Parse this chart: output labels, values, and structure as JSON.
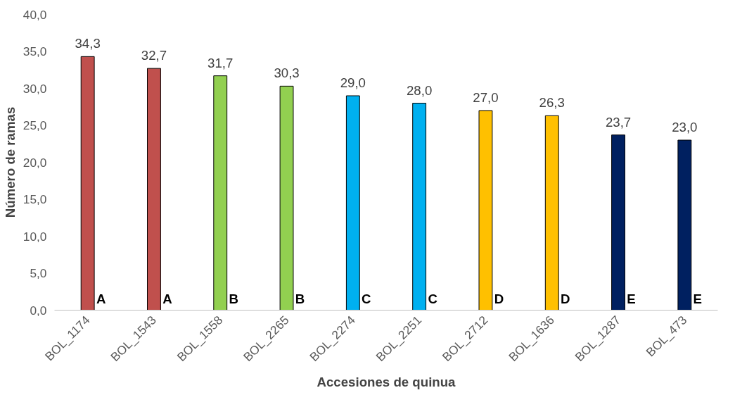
{
  "chart_data": {
    "type": "bar",
    "xlabel": "Accesiones de quinua",
    "ylabel": "Número de ramas",
    "categories": [
      "BOL_1174",
      "BOL_1543",
      "BOL_1558",
      "BOL_2265",
      "BOL_2274",
      "BOL_2251",
      "BOL_2712",
      "BOL_1636",
      "BOL_1287",
      "BOL_473"
    ],
    "values": [
      34.3,
      32.7,
      31.7,
      30.3,
      29.0,
      28.0,
      27.0,
      26.3,
      23.7,
      23.0
    ],
    "colors": [
      "#c0504d",
      "#c0504d",
      "#92d050",
      "#92d050",
      "#00b0f0",
      "#00b0f0",
      "#ffc000",
      "#ffc000",
      "#002060",
      "#002060"
    ],
    "value_labels": [
      "34,3",
      "32,7",
      "31,7",
      "30,3",
      "29,0",
      "28,0",
      "27,0",
      "26,3",
      "23,7",
      "23,0"
    ],
    "ylim": [
      0,
      40
    ],
    "yticks": [
      {
        "value": 0,
        "label": "0,0"
      },
      {
        "value": 5,
        "label": "5,0"
      },
      {
        "value": 10,
        "label": "10,0"
      },
      {
        "value": 15,
        "label": "15,0"
      },
      {
        "value": 20,
        "label": "20,0"
      },
      {
        "value": 25,
        "label": "25,0"
      },
      {
        "value": 30,
        "label": "30,0"
      },
      {
        "value": 35,
        "label": "35,0"
      },
      {
        "value": 40,
        "label": "40,0"
      }
    ],
    "grid": false,
    "annotations": [
      "A",
      "A",
      "B",
      "B",
      "C",
      "C",
      "D",
      "D",
      "E",
      "E"
    ]
  }
}
